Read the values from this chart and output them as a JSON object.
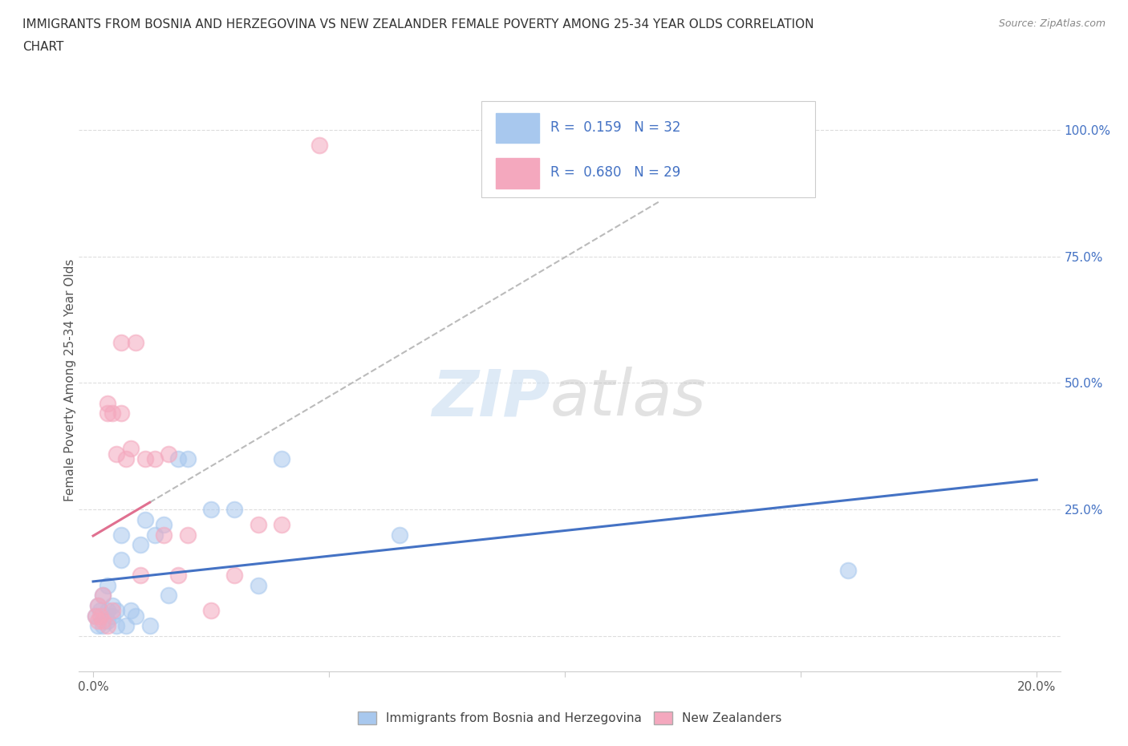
{
  "title_line1": "IMMIGRANTS FROM BOSNIA AND HERZEGOVINA VS NEW ZEALANDER FEMALE POVERTY AMONG 25-34 YEAR OLDS CORRELATION",
  "title_line2": "CHART",
  "source": "Source: ZipAtlas.com",
  "ylabel": "Female Poverty Among 25-34 Year Olds",
  "x_ticks": [
    0.0,
    0.05,
    0.1,
    0.15,
    0.2
  ],
  "y_ticks": [
    0.0,
    0.25,
    0.5,
    0.75,
    1.0
  ],
  "y_tick_labels": [
    "",
    "25.0%",
    "50.0%",
    "75.0%",
    "100.0%"
  ],
  "xlim": [
    -0.003,
    0.205
  ],
  "ylim": [
    -0.07,
    1.08
  ],
  "blue_R": 0.159,
  "blue_N": 32,
  "pink_R": 0.68,
  "pink_N": 29,
  "blue_color": "#A8C8EE",
  "pink_color": "#F4A8BE",
  "blue_line_color": "#4472C4",
  "pink_line_color": "#E07090",
  "gray_dash_color": "#BBBBBB",
  "grid_color": "#DDDDDD",
  "legend_label_blue": "Immigrants from Bosnia and Herzegovina",
  "legend_label_pink": "New Zealanders",
  "blue_points_x": [
    0.0005,
    0.001,
    0.001,
    0.0015,
    0.002,
    0.002,
    0.003,
    0.003,
    0.003,
    0.004,
    0.004,
    0.005,
    0.005,
    0.006,
    0.006,
    0.007,
    0.008,
    0.009,
    0.01,
    0.011,
    0.012,
    0.013,
    0.015,
    0.016,
    0.018,
    0.02,
    0.025,
    0.03,
    0.035,
    0.04,
    0.065,
    0.16
  ],
  "blue_points_y": [
    0.04,
    0.02,
    0.06,
    0.05,
    0.02,
    0.08,
    0.03,
    0.05,
    0.1,
    0.04,
    0.06,
    0.02,
    0.05,
    0.15,
    0.2,
    0.02,
    0.05,
    0.04,
    0.18,
    0.23,
    0.02,
    0.2,
    0.22,
    0.08,
    0.35,
    0.35,
    0.25,
    0.25,
    0.1,
    0.35,
    0.2,
    0.13
  ],
  "pink_points_x": [
    0.0005,
    0.001,
    0.001,
    0.0015,
    0.002,
    0.002,
    0.003,
    0.003,
    0.003,
    0.004,
    0.004,
    0.005,
    0.006,
    0.006,
    0.007,
    0.008,
    0.009,
    0.01,
    0.011,
    0.013,
    0.015,
    0.016,
    0.018,
    0.02,
    0.025,
    0.03,
    0.035,
    0.04,
    0.048
  ],
  "pink_points_y": [
    0.04,
    0.03,
    0.06,
    0.04,
    0.03,
    0.08,
    0.02,
    0.44,
    0.46,
    0.05,
    0.44,
    0.36,
    0.58,
    0.44,
    0.35,
    0.37,
    0.58,
    0.12,
    0.35,
    0.35,
    0.2,
    0.36,
    0.12,
    0.2,
    0.05,
    0.12,
    0.22,
    0.22,
    0.97
  ]
}
